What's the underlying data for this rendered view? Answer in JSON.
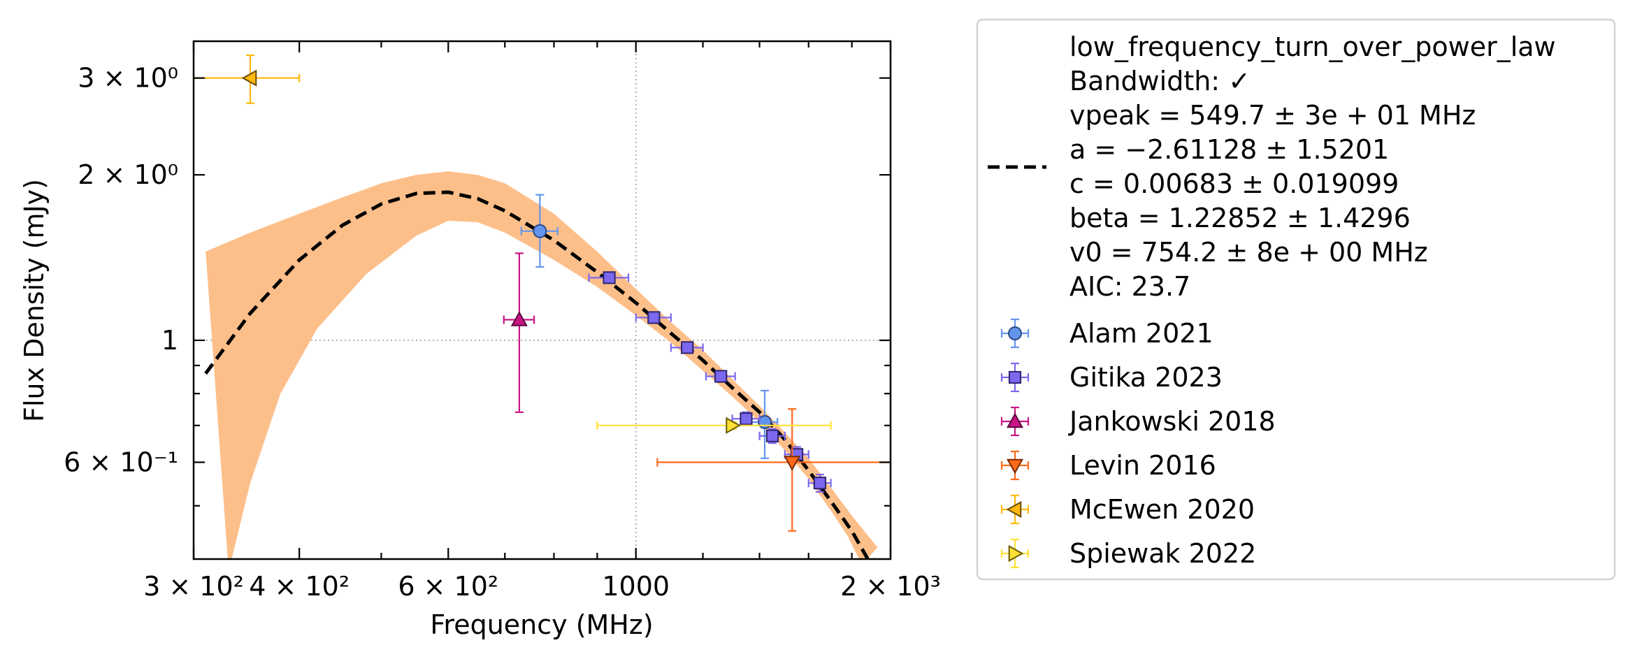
{
  "chart_data": {
    "type": "scatter",
    "xlabel": "Frequency (MHz)",
    "ylabel": "Flux Density (mJy)",
    "xscale": "log",
    "yscale": "log",
    "xlim": [
      300,
      2000
    ],
    "ylim": [
      0.4,
      3.5
    ],
    "grid": "dotted lines at x=1000 and y=1",
    "legend_placement": "outside right",
    "x_ticks": [
      {
        "value": 300,
        "label": "3 × 10²"
      },
      {
        "value": 400,
        "label": "4 × 10²"
      },
      {
        "value": 600,
        "label": "6 × 10²"
      },
      {
        "value": 1000,
        "label": "1000"
      },
      {
        "value": 2000,
        "label": "2 × 10³"
      }
    ],
    "x_minor_ticks": [
      500,
      700,
      800,
      900,
      1200,
      1400,
      1600,
      1800
    ],
    "y_ticks": [
      {
        "value": 0.6,
        "label": "6 × 10⁻¹"
      },
      {
        "value": 1,
        "label": "1"
      },
      {
        "value": 2,
        "label": "2 × 10⁰"
      },
      {
        "value": 3,
        "label": "3 × 10⁰"
      }
    ],
    "y_minor_ticks": [
      0.5,
      0.7,
      0.8,
      0.9,
      4
    ],
    "model": {
      "lines": [
        "low_frequency_turn_over_power_law",
        "Bandwidth: ✓",
        "vpeak = 549.7 ± 3e + 01 MHz",
        "a = −2.61128 ± 1.5201",
        "c = 0.00683 ± 0.019099",
        "beta = 1.22852 ± 1.4296",
        "v0 = 754.2 ± 8e + 00 MHz",
        "AIC: 23.7"
      ],
      "line_color": "#000000",
      "band_color": "#fdbf8a",
      "curve": [
        [
          310,
          0.87
        ],
        [
          350,
          1.12
        ],
        [
          400,
          1.4
        ],
        [
          450,
          1.62
        ],
        [
          500,
          1.77
        ],
        [
          550,
          1.85
        ],
        [
          600,
          1.86
        ],
        [
          650,
          1.81
        ],
        [
          700,
          1.72
        ],
        [
          800,
          1.52
        ],
        [
          900,
          1.33
        ],
        [
          1000,
          1.17
        ],
        [
          1100,
          1.03
        ],
        [
          1200,
          0.92
        ],
        [
          1300,
          0.82
        ],
        [
          1400,
          0.74
        ],
        [
          1500,
          0.66
        ],
        [
          1600,
          0.58
        ],
        [
          1700,
          0.51
        ],
        [
          1800,
          0.45
        ],
        [
          1880,
          0.4
        ]
      ],
      "band_upper": [
        [
          310,
          1.45
        ],
        [
          350,
          1.57
        ],
        [
          400,
          1.7
        ],
        [
          450,
          1.82
        ],
        [
          500,
          1.93
        ],
        [
          550,
          2.0
        ],
        [
          600,
          2.03
        ],
        [
          650,
          2.0
        ],
        [
          700,
          1.93
        ],
        [
          800,
          1.7
        ],
        [
          900,
          1.45
        ],
        [
          1000,
          1.24
        ],
        [
          1100,
          1.08
        ],
        [
          1200,
          0.96
        ],
        [
          1300,
          0.85
        ],
        [
          1400,
          0.76
        ],
        [
          1500,
          0.68
        ],
        [
          1600,
          0.61
        ],
        [
          1700,
          0.54
        ],
        [
          1800,
          0.48
        ],
        [
          1930,
          0.42
        ]
      ],
      "band_lower": [
        [
          330,
          0.38
        ],
        [
          350,
          0.55
        ],
        [
          380,
          0.8
        ],
        [
          420,
          1.05
        ],
        [
          480,
          1.32
        ],
        [
          550,
          1.55
        ],
        [
          600,
          1.65
        ],
        [
          650,
          1.64
        ],
        [
          700,
          1.57
        ],
        [
          800,
          1.4
        ],
        [
          900,
          1.25
        ],
        [
          1000,
          1.11
        ],
        [
          1100,
          0.99
        ],
        [
          1200,
          0.88
        ],
        [
          1300,
          0.79
        ],
        [
          1400,
          0.71
        ],
        [
          1500,
          0.63
        ],
        [
          1600,
          0.56
        ],
        [
          1700,
          0.49
        ],
        [
          1780,
          0.44
        ],
        [
          1850,
          0.39
        ]
      ]
    },
    "series": [
      {
        "name": "Alam 2021",
        "marker": "circle",
        "color": "#6495ed",
        "edge": "#2c4a8a",
        "points": [
          {
            "x": 770,
            "y": 1.58,
            "xerr": 38,
            "yerr": [
              0.22,
              0.26
            ]
          },
          {
            "x": 1420,
            "y": 0.71,
            "xerr": 50,
            "yerr": [
              0.1,
              0.1
            ]
          }
        ]
      },
      {
        "name": "Gitika 2023",
        "marker": "square",
        "color": "#7b68ee",
        "edge": "#2e2470",
        "points": [
          {
            "x": 930,
            "y": 1.3,
            "xerr": 50,
            "yerr": [
              0.02,
              0.02
            ]
          },
          {
            "x": 1050,
            "y": 1.1,
            "xerr": 50,
            "yerr": [
              0.02,
              0.02
            ]
          },
          {
            "x": 1150,
            "y": 0.97,
            "xerr": 50,
            "yerr": [
              0.02,
              0.02
            ]
          },
          {
            "x": 1260,
            "y": 0.86,
            "xerr": 50,
            "yerr": [
              0.02,
              0.02
            ]
          },
          {
            "x": 1350,
            "y": 0.72,
            "xerr": 50,
            "yerr": [
              0.02,
              0.02
            ]
          },
          {
            "x": 1450,
            "y": 0.67,
            "xerr": 50,
            "yerr": [
              0.02,
              0.02
            ]
          },
          {
            "x": 1550,
            "y": 0.62,
            "xerr": 50,
            "yerr": [
              0.02,
              0.02
            ]
          },
          {
            "x": 1650,
            "y": 0.55,
            "xerr": 50,
            "yerr": [
              0.02,
              0.02
            ]
          }
        ]
      },
      {
        "name": "Jankowski 2018",
        "marker": "triangle-up",
        "color": "#c71585",
        "edge": "#5a0a3c",
        "points": [
          {
            "x": 728,
            "y": 1.09,
            "xerr": 30,
            "yerr": [
              0.35,
              0.35
            ]
          }
        ]
      },
      {
        "name": "Levin 2016",
        "marker": "triangle-down",
        "color": "#ff6a1a",
        "edge": "#7a2a00",
        "points": [
          {
            "x": 1530,
            "y": 0.6,
            "xerr": 470,
            "yerr": [
              0.15,
              0.15
            ]
          }
        ]
      },
      {
        "name": "McEwen 2020",
        "marker": "triangle-left",
        "color": "#ffb90f",
        "edge": "#6a4a00",
        "points": [
          {
            "x": 350,
            "y": 3.0,
            "xerr": 50,
            "yerr": [
              0.3,
              0.3
            ]
          }
        ]
      },
      {
        "name": "Spiewak 2022",
        "marker": "triangle-right",
        "color": "#ffe135",
        "edge": "#6a5a00",
        "points": [
          {
            "x": 1300,
            "y": 0.7,
            "xerr": 400,
            "yerr": [
              0.01,
              0.01
            ]
          }
        ]
      }
    ]
  }
}
